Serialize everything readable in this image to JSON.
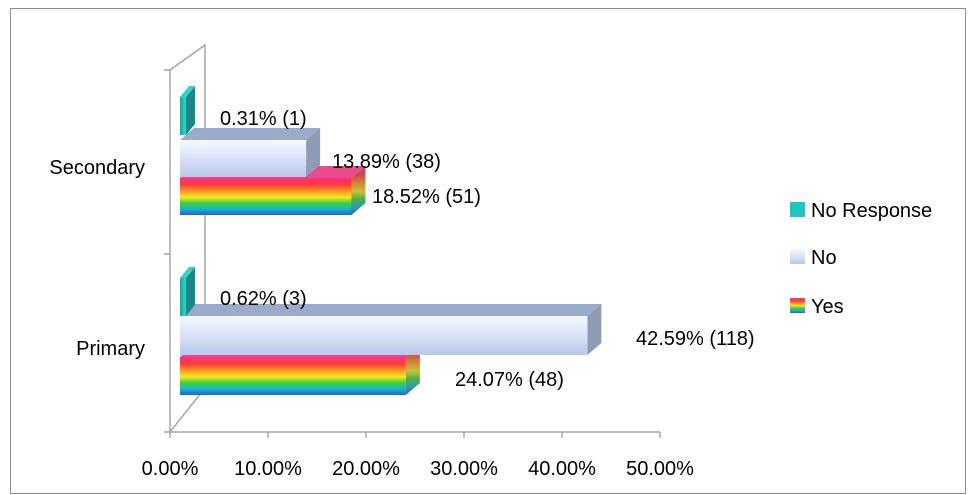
{
  "chart_data": {
    "type": "bar",
    "orientation": "horizontal",
    "style": "3d-clustered",
    "categories": [
      "Primary",
      "Secondary"
    ],
    "series": [
      {
        "name": "Yes",
        "fill": "rainbow-gradient",
        "values": [
          24.07,
          18.52
        ],
        "labels": [
          "24.07% (48)",
          "18.52% (51)"
        ]
      },
      {
        "name": "No",
        "fill": "#c9d6f2",
        "values": [
          42.59,
          13.89
        ],
        "labels": [
          "42.59% (118)",
          "13.89% (38)"
        ]
      },
      {
        "name": "No Response",
        "fill": "#1fc6c0",
        "values": [
          0.62,
          0.31
        ],
        "labels": [
          "0.62% (3)",
          "0.31% (1)"
        ]
      }
    ],
    "x_ticks": [
      "0.00%",
      "10.00%",
      "20.00%",
      "30.00%",
      "40.00%",
      "50.00%"
    ],
    "xlim": [
      0,
      50
    ],
    "legend_position": "right",
    "grid": false
  }
}
